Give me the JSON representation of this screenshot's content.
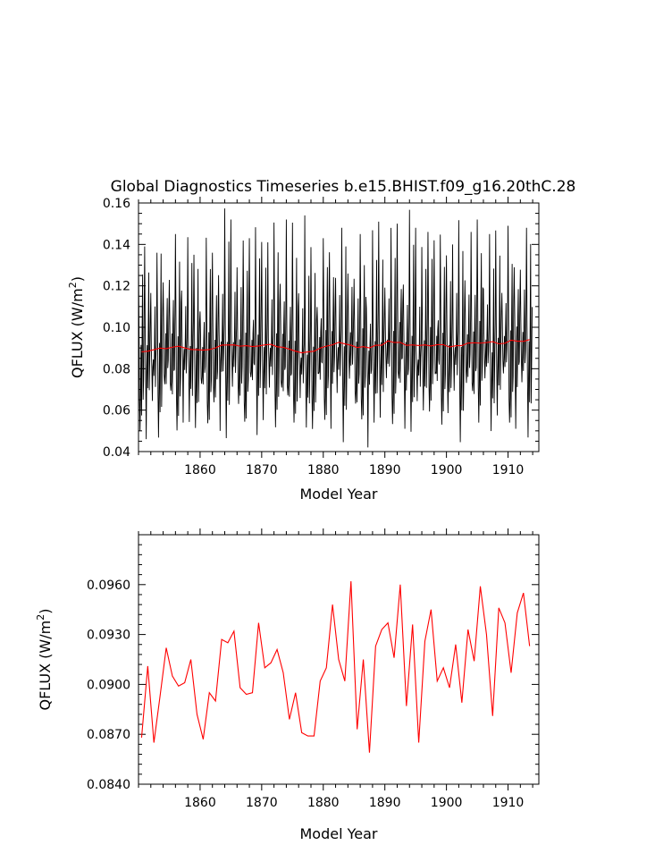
{
  "figure_title": "Global Diagnostics Timeseries b.e15.BHIST.f09_g16.20thC.28",
  "chart_data": [
    {
      "type": "line",
      "title": "Global Diagnostics Timeseries b.e15.BHIST.f09_g16.20thC.28",
      "xlabel": "Model Year",
      "ylabel_main": "QFLUX (W/m",
      "ylabel_sup": "2",
      "ylabel_close": ")",
      "xlim": [
        1850,
        1915
      ],
      "ylim": [
        0.04,
        0.16
      ],
      "x_ticks": [
        1860,
        1870,
        1880,
        1890,
        1900,
        1910
      ],
      "x_tick_labels": [
        "1860",
        "1870",
        "1880",
        "1890",
        "1900",
        "1910"
      ],
      "y_ticks": [
        0.04,
        0.06,
        0.08,
        0.1,
        0.12,
        0.14,
        0.16
      ],
      "y_tick_labels": [
        "0.04",
        "0.06",
        "0.08",
        "0.10",
        "0.12",
        "0.14",
        "0.16"
      ],
      "grid": false,
      "legend": "none",
      "series": [
        {
          "kind": "monthly",
          "color": "#000000",
          "start": 1850,
          "step": 0.0833333,
          "annual_means": [
            0.0868,
            0.0911,
            0.0865,
            0.0893,
            0.0922,
            0.0905,
            0.0899,
            0.0901,
            0.0915,
            0.0882,
            0.0867,
            0.0895,
            0.089,
            0.0927,
            0.0925,
            0.0932,
            0.0898,
            0.0894,
            0.0895,
            0.0937,
            0.091,
            0.0913,
            0.0921,
            0.0907,
            0.0879,
            0.0895,
            0.0871,
            0.0869,
            0.0869,
            0.0902,
            0.091,
            0.0948,
            0.0915,
            0.0902,
            0.0962,
            0.0873,
            0.0915,
            0.0859,
            0.0923,
            0.0933,
            0.0937,
            0.0916,
            0.096,
            0.0887,
            0.0936,
            0.0865,
            0.0926,
            0.0945,
            0.0902,
            0.091,
            0.0898,
            0.0924,
            0.0889,
            0.0933,
            0.0914,
            0.0959,
            0.093,
            0.0881,
            0.0946,
            0.0937,
            0.0907,
            0.0943,
            0.0955,
            0.0923
          ],
          "seasonal_cycle": [
            0.042,
            0.01,
            -0.016,
            -0.029,
            -0.015,
            0.003,
            -0.022,
            0.008,
            0.031,
            -0.018,
            -0.008,
            0.014
          ],
          "peaks": [
            0.134,
            0.136,
            0.145,
            0.135,
            0.136,
            0.152,
            0.143,
            0.141,
            0.152,
            0.154,
            0.143,
            0.148,
            0.145,
            0.151,
            0.15,
            0.148,
            0.142,
            0.14,
            0.146,
            0.145,
            0.149,
            0.148
          ],
          "troughs": [
            0.046,
            0.054,
            0.05,
            0.048,
            0.054,
            0.051,
            0.042,
            0.051,
            0.053,
            0.054,
            0.051
          ]
        },
        {
          "kind": "running-mean",
          "color": "#ff0000",
          "start": 1850,
          "window_years": 5
        }
      ]
    },
    {
      "type": "line",
      "xlabel": "Model Year",
      "ylabel_main": "QFLUX (W/m",
      "ylabel_sup": "2",
      "ylabel_close": ")",
      "xlim": [
        1850,
        1915
      ],
      "ylim": [
        0.084,
        0.099
      ],
      "x_ticks": [
        1860,
        1870,
        1880,
        1890,
        1900,
        1910
      ],
      "x_tick_labels": [
        "1860",
        "1870",
        "1880",
        "1890",
        "1900",
        "1910"
      ],
      "y_ticks": [
        0.084,
        0.087,
        0.09,
        0.093,
        0.096
      ],
      "y_tick_labels": [
        "0.0840",
        "0.0870",
        "0.0900",
        "0.0930",
        "0.0960"
      ],
      "grid": false,
      "legend": "none",
      "series": [
        {
          "color": "#ff0000",
          "x_start": 1850,
          "x_step": 1,
          "values": [
            0.0868,
            0.0911,
            0.0865,
            0.0893,
            0.0922,
            0.0905,
            0.0899,
            0.0901,
            0.0915,
            0.0882,
            0.0867,
            0.0895,
            0.089,
            0.0927,
            0.0925,
            0.0932,
            0.0898,
            0.0894,
            0.0895,
            0.0937,
            0.091,
            0.0913,
            0.0921,
            0.0907,
            0.0879,
            0.0895,
            0.0871,
            0.0869,
            0.0869,
            0.0902,
            0.091,
            0.0948,
            0.0915,
            0.0902,
            0.0962,
            0.0873,
            0.0915,
            0.0859,
            0.0923,
            0.0933,
            0.0937,
            0.0916,
            0.096,
            0.0887,
            0.0936,
            0.0865,
            0.0926,
            0.0945,
            0.0902,
            0.091,
            0.0898,
            0.0924,
            0.0889,
            0.0933,
            0.0914,
            0.0959,
            0.093,
            0.0881,
            0.0946,
            0.0937,
            0.0907,
            0.0943,
            0.0955,
            0.0923
          ]
        }
      ]
    }
  ]
}
